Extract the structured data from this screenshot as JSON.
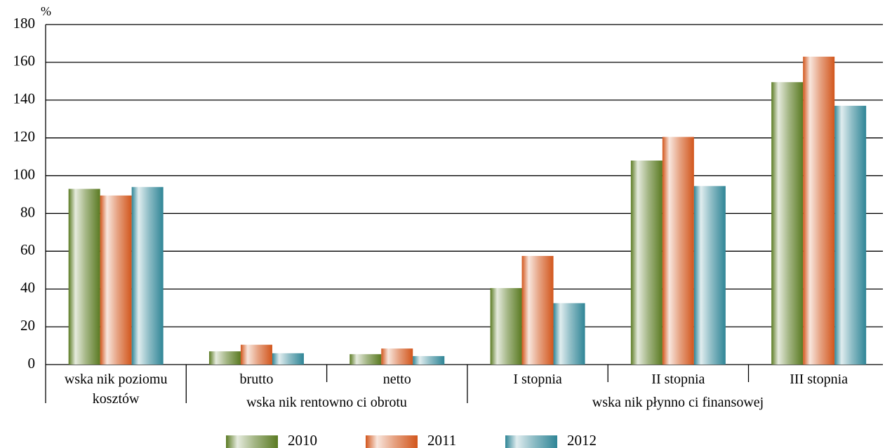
{
  "chart_data": {
    "type": "bar",
    "y_label": "%",
    "categories": [
      "wska nik poziomu kosztów",
      "brutto",
      "netto",
      "I stopnia",
      "II stopnia",
      "III stopnia"
    ],
    "group_labels": [
      "wska nik rentowno ci obrotu",
      "wska nik płynno ci finansowej"
    ],
    "series": [
      {
        "name": "2010",
        "color": "#5a7a22",
        "values": [
          93,
          7,
          5.5,
          40.5,
          108,
          149.5
        ]
      },
      {
        "name": "2011",
        "color": "#d2561c",
        "values": [
          89.5,
          10.5,
          8.5,
          57.5,
          120.5,
          163
        ]
      },
      {
        "name": "2012",
        "color": "#2f8596",
        "values": [
          94,
          6,
          4.5,
          32.5,
          94.5,
          137
        ]
      }
    ],
    "ylim": [
      0,
      180
    ],
    "yticks": [
      0,
      20,
      40,
      60,
      80,
      100,
      120,
      140,
      160,
      180
    ],
    "grid": true
  }
}
